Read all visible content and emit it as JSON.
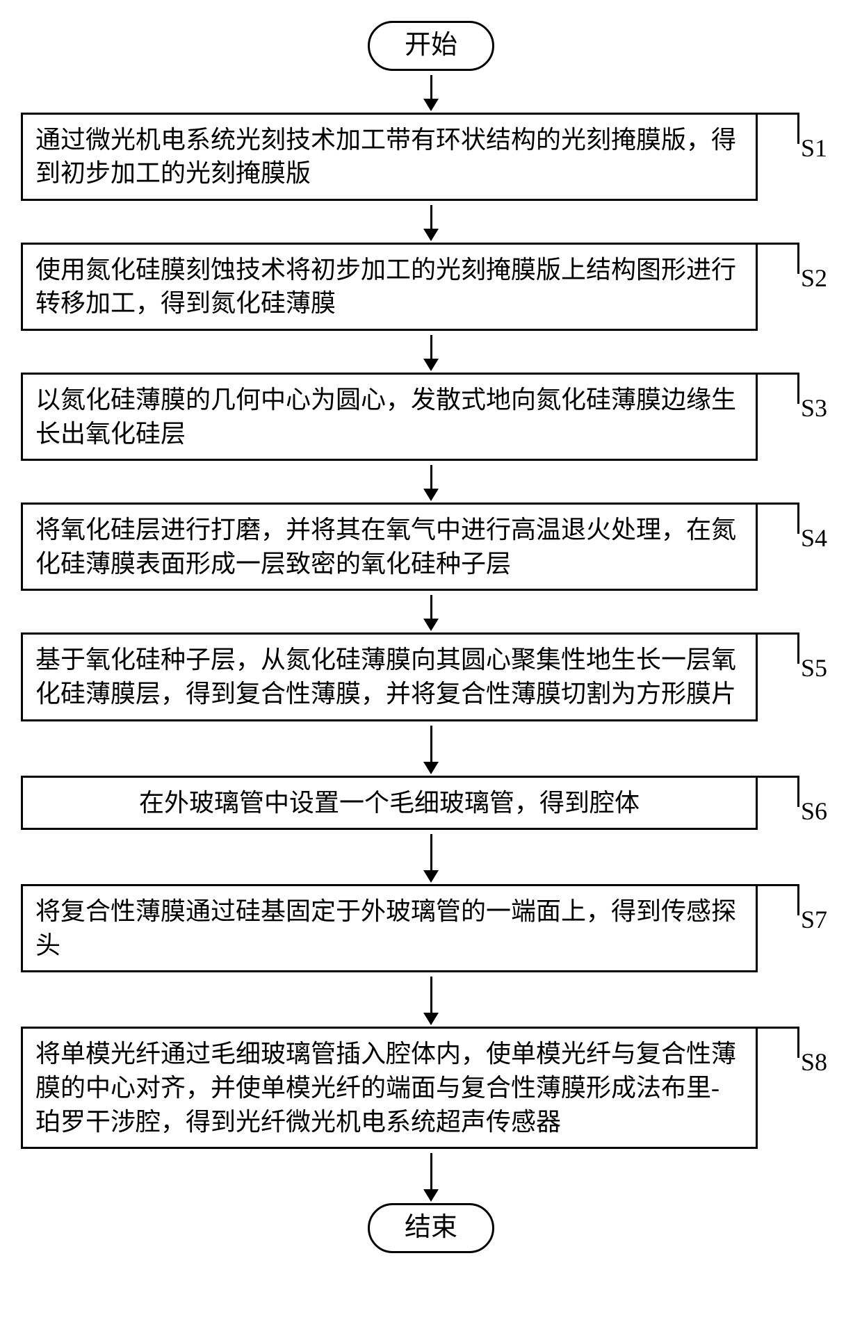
{
  "start_label": "开始",
  "end_label": "结束",
  "arrow": {
    "short_line_h": 34,
    "long_line_h": 52
  },
  "steps": [
    {
      "id": "S1",
      "text": "通过微光机电系统光刻技术加工带有环状结构的光刻掩膜版，得到初步加工的光刻掩膜版"
    },
    {
      "id": "S2",
      "text": "使用氮化硅膜刻蚀技术将初步加工的光刻掩膜版上结构图形进行转移加工，得到氮化硅薄膜"
    },
    {
      "id": "S3",
      "text": "以氮化硅薄膜的几何中心为圆心，发散式地向氮化硅薄膜边缘生长出氧化硅层"
    },
    {
      "id": "S4",
      "text": "将氧化硅层进行打磨，并将其在氧气中进行高温退火处理，在氮化硅薄膜表面形成一层致密的氧化硅种子层"
    },
    {
      "id": "S5",
      "text": "基于氧化硅种子层，从氮化硅薄膜向其圆心聚集性地生长一层氧化硅薄膜层，得到复合性薄膜，并将复合性薄膜切割为方形膜片"
    },
    {
      "id": "S6",
      "text": "在外玻璃管中设置一个毛细玻璃管，得到腔体"
    },
    {
      "id": "S7",
      "text": "将复合性薄膜通过硅基固定于外玻璃管的一端面上，得到传感探头"
    },
    {
      "id": "S8",
      "text": "将单模光纤通过毛细玻璃管插入腔体内，使单模光纤与复合性薄膜的中心对齐，并使单模光纤的端面与复合性薄膜形成法布里-珀罗干涉腔，得到光纤微光机电系统超声传感器"
    }
  ]
}
